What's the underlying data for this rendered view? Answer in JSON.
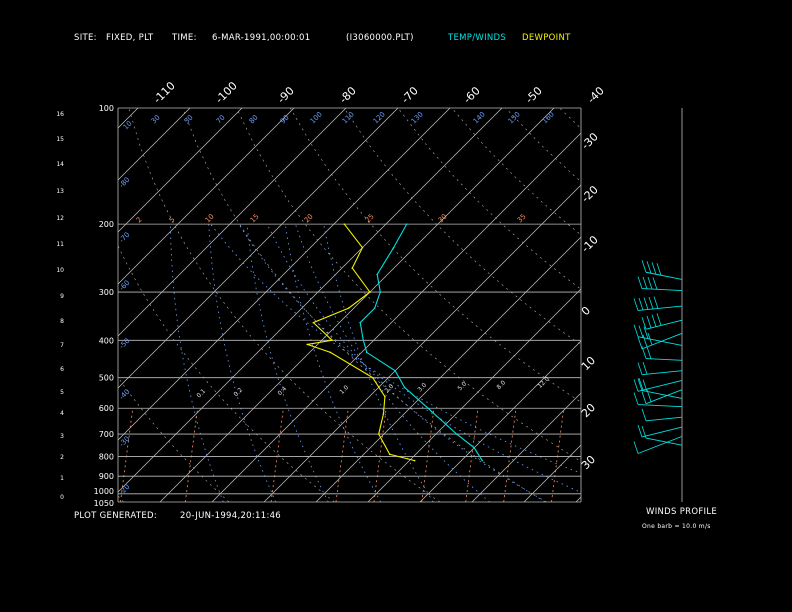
{
  "header": {
    "site_label": "SITE:",
    "site_value": "FIXED, PLT",
    "time_label": "TIME:",
    "time_value": "6-MAR-1991,00:00:01",
    "file_name": "(I3060000.PLT)",
    "temp_winds_legend": "TEMP/WINDS",
    "dewpoint_legend": "DEWPOINT"
  },
  "footer": {
    "plot_generated_label": "PLOT GENERATED:",
    "plot_generated_value": "20-JUN-1994,20:11:46",
    "winds_profile_title": "WINDS PROFILE",
    "barb_note": "One barb = 10.0 m/s"
  },
  "colors": {
    "background": "#000000",
    "temperature": "#00e0e0",
    "dewpoint": "#f0f000",
    "isotherms": "#c8c8c8",
    "dry_adiabats": "#b4b4b4",
    "moist_adiabats": "#6aa0ff",
    "mixing_ratio": "#ff9060",
    "winds": "#00e0e0"
  },
  "chart_data": {
    "type": "line",
    "chart_kind": "skew-T log-p thermodynamic diagram",
    "pressure_labels_hPa": [
      "100",
      "200",
      "300",
      "400",
      "500",
      "600",
      "700",
      "800",
      "900",
      "1000",
      "1050"
    ],
    "height_labels_km": [
      "16",
      "15",
      "14",
      "13",
      "12",
      "11",
      "10",
      "9",
      "8",
      "7",
      "6",
      "5",
      "4",
      "3",
      "2",
      "1",
      "0"
    ],
    "isotherm_top_labels": [
      "-110",
      "-100",
      "-90",
      "-80",
      "-70",
      "-60",
      "-50",
      "-40"
    ],
    "isotherm_right_labels": [
      "-30",
      "-20",
      "-10",
      "0",
      "10",
      "20",
      "30"
    ],
    "dry_adiabat_labels": [
      "10",
      "30",
      "50",
      "70",
      "80",
      "90",
      "100",
      "110",
      "120",
      "130",
      "140",
      "150",
      "160"
    ],
    "moist_adiabat_left_labels": [
      "-80",
      "-70",
      "-60",
      "-50",
      "-40",
      "-30",
      "-20",
      "-10",
      "0"
    ],
    "mixing_ratio_labels": [
      "2",
      "5",
      "10",
      "15",
      "20",
      "25",
      "30",
      "35"
    ],
    "mixing_ratio_lower_labels": [
      "0.1",
      "0.2",
      "0.4",
      "1.0",
      "2.0",
      "3.0",
      "5.0",
      "8.0",
      "12.0"
    ],
    "axis": {
      "p_top_hPa": 100,
      "p_bottom_hPa": 1050,
      "y_scale": "log-p",
      "skew": "45 degrees"
    },
    "series": [
      {
        "name": "TEMP/WINDS",
        "points": [
          {
            "p": 200,
            "t": -56.0
          },
          {
            "p": 230,
            "t": -54.0
          },
          {
            "p": 270,
            "t": -52.0
          },
          {
            "p": 300,
            "t": -48.0
          },
          {
            "p": 330,
            "t": -46.0
          },
          {
            "p": 360,
            "t": -46.0
          },
          {
            "p": 400,
            "t": -42.0
          },
          {
            "p": 430,
            "t": -39.0
          },
          {
            "p": 480,
            "t": -30.0
          },
          {
            "p": 530,
            "t": -25.0
          },
          {
            "p": 600,
            "t": -16.5
          },
          {
            "p": 700,
            "t": -6.0
          },
          {
            "p": 760,
            "t": 0.0
          },
          {
            "p": 820,
            "t": 4.0
          }
        ]
      },
      {
        "name": "DEWPOINT",
        "points": [
          {
            "p": 200,
            "t": -68.0
          },
          {
            "p": 230,
            "t": -60.0
          },
          {
            "p": 260,
            "t": -58.0
          },
          {
            "p": 300,
            "t": -50.0
          },
          {
            "p": 330,
            "t": -51.0
          },
          {
            "p": 360,
            "t": -55.0
          },
          {
            "p": 400,
            "t": -48.0
          },
          {
            "p": 410,
            "t": -52.0
          },
          {
            "p": 430,
            "t": -46.0
          },
          {
            "p": 500,
            "t": -33.0
          },
          {
            "p": 560,
            "t": -27.0
          },
          {
            "p": 620,
            "t": -24.0
          },
          {
            "p": 700,
            "t": -21.0
          },
          {
            "p": 790,
            "t": -15.0
          },
          {
            "p": 820,
            "t": -9.0
          }
        ]
      }
    ],
    "winds_profile": {
      "unit": "m/s",
      "barb_value": 10.0,
      "barbs": [
        {
          "p": 290,
          "speed": 40
        },
        {
          "p": 310,
          "speed": 40
        },
        {
          "p": 340,
          "speed": 45
        },
        {
          "p": 370,
          "speed": 35
        },
        {
          "p": 400,
          "speed": 30
        },
        {
          "p": 430,
          "speed": 25
        },
        {
          "p": 470,
          "speed": 20
        },
        {
          "p": 500,
          "speed": 18
        },
        {
          "p": 530,
          "speed": 20
        },
        {
          "p": 560,
          "speed": 22
        },
        {
          "p": 590,
          "speed": 15
        },
        {
          "p": 620,
          "speed": 12
        },
        {
          "p": 660,
          "speed": 10
        },
        {
          "p": 700,
          "speed": 10
        },
        {
          "p": 740,
          "speed": 8
        },
        {
          "p": 780,
          "speed": 6
        }
      ]
    }
  }
}
